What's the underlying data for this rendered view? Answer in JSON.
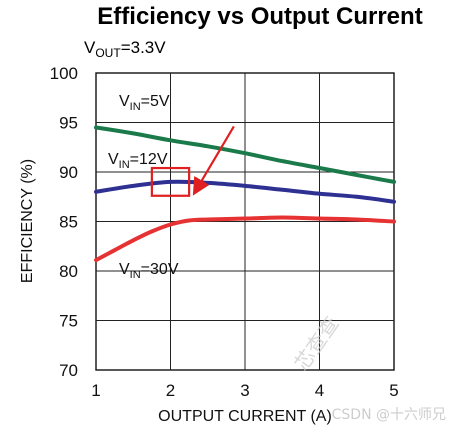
{
  "chart_data": {
    "type": "line",
    "title": "Efficiency vs Output Current",
    "subtitle": {
      "prefix": "V",
      "sub": "OUT",
      "suffix": "=3.3V"
    },
    "xlabel": "OUTPUT CURRENT (A)",
    "ylabel": "EFFICIENCY (%)",
    "xlim": [
      1,
      5
    ],
    "ylim": [
      70,
      100
    ],
    "xticks": [
      "1",
      "2",
      "3",
      "4",
      "5"
    ],
    "yticks": [
      "70",
      "75",
      "80",
      "85",
      "90",
      "95",
      "100"
    ],
    "grid": true,
    "series": [
      {
        "name": "V_IN=5V",
        "label_prefix": "V",
        "label_sub": "IN",
        "label_suffix": "=5V",
        "color": "#1a7a4a",
        "x": [
          1,
          1.5,
          2,
          2.5,
          3,
          3.5,
          4,
          4.5,
          5
        ],
        "y": [
          94.5,
          93.9,
          93.2,
          92.6,
          91.9,
          91.1,
          90.4,
          89.7,
          89.0
        ]
      },
      {
        "name": "V_IN=12V",
        "label_prefix": "V",
        "label_sub": "IN",
        "label_suffix": "=12V",
        "color": "#2e3192",
        "x": [
          1,
          1.5,
          2,
          2.5,
          3,
          3.5,
          4,
          4.5,
          5
        ],
        "y": [
          88.0,
          88.6,
          89.0,
          88.9,
          88.6,
          88.2,
          87.8,
          87.5,
          87.0
        ]
      },
      {
        "name": "V_IN=30V",
        "label_prefix": "V",
        "label_sub": "IN",
        "label_suffix": "=30V",
        "color": "#e63232",
        "x": [
          1,
          1.25,
          1.5,
          1.75,
          2,
          2.25,
          2.5,
          3,
          3.5,
          4,
          4.5,
          5
        ],
        "y": [
          81.1,
          82.1,
          83.1,
          84.0,
          84.7,
          85.1,
          85.2,
          85.3,
          85.4,
          85.3,
          85.2,
          85.0
        ]
      }
    ],
    "annotations": [
      {
        "type": "box",
        "color": "#e02020",
        "x": [
          1.75,
          2.25
        ],
        "y": [
          87.6,
          90.4
        ]
      },
      {
        "type": "arrow",
        "color": "#e02020",
        "from": [
          2.85,
          94.6
        ],
        "to": [
          2.33,
          88.0
        ]
      }
    ]
  },
  "watermark": {
    "text": "芯查查",
    "credit": "CSDN @十六师兄"
  }
}
